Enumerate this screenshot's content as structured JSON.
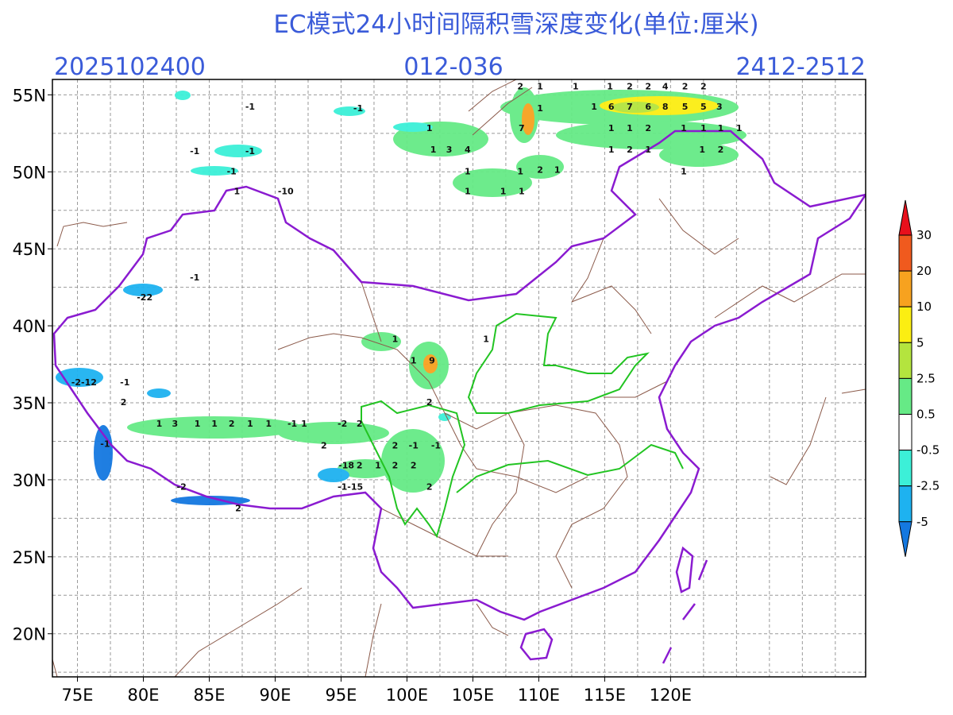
{
  "map": {
    "title": "EC模式24小时间隔积雪深度变化(单位:厘米)",
    "init_time": "2025102400",
    "forecast_hours": "012-036",
    "valid_period": "2412-2512",
    "lon_range": [
      73.1,
      134.8
    ],
    "lat_range": [
      17.2,
      56.0
    ],
    "grid_step": 2.5,
    "lat_ticks": [
      {
        "value": 55,
        "label": "55N"
      },
      {
        "value": 50,
        "label": "50N"
      },
      {
        "value": 45,
        "label": "45N"
      },
      {
        "value": 40,
        "label": "40N"
      },
      {
        "value": 35,
        "label": "35N"
      },
      {
        "value": 30,
        "label": "30N"
      },
      {
        "value": 25,
        "label": "25N"
      },
      {
        "value": 20,
        "label": "20N"
      }
    ],
    "lon_ticks": [
      {
        "value": 75,
        "label": "75E"
      },
      {
        "value": 80,
        "label": "80E"
      },
      {
        "value": 85,
        "label": "85E"
      },
      {
        "value": 90,
        "label": "90E"
      },
      {
        "value": 95,
        "label": "95E"
      },
      {
        "value": 100,
        "label": "100E"
      },
      {
        "value": 105,
        "label": "105E"
      },
      {
        "value": 110,
        "label": "110E"
      },
      {
        "value": 115,
        "label": "115E"
      },
      {
        "value": 120,
        "label": "120E"
      }
    ],
    "colorbar": {
      "levels": [
        30,
        20,
        10,
        5,
        2.5,
        0.5,
        -0.5,
        -2.5,
        -5
      ],
      "colors": [
        "#e8101c",
        "#f05a1e",
        "#f7a21f",
        "#fbee12",
        "#b4e43e",
        "#66ea86",
        "#ffffff",
        "#3cf0d8",
        "#1eb2f0",
        "#1478e0"
      ]
    },
    "labels": [
      {
        "text": "-1",
        "lon": 88.1,
        "lat": 54.2
      },
      {
        "text": "-1",
        "lon": 96.3,
        "lat": 54.1
      },
      {
        "text": "-1",
        "lon": 83.9,
        "lat": 51.3
      },
      {
        "text": "-1",
        "lon": 88.1,
        "lat": 51.3
      },
      {
        "text": "-1",
        "lon": 86.7,
        "lat": 50.0
      },
      {
        "text": "1",
        "lon": 87.1,
        "lat": 48.7
      },
      {
        "text": "-10",
        "lon": 90.8,
        "lat": 48.7
      },
      {
        "text": "-1",
        "lon": 83.9,
        "lat": 43.1
      },
      {
        "text": "-22",
        "lon": 80.1,
        "lat": 41.8
      },
      {
        "text": "-2-12",
        "lon": 75.5,
        "lat": 36.3
      },
      {
        "text": "-1",
        "lon": 78.6,
        "lat": 36.3
      },
      {
        "text": "2",
        "lon": 78.5,
        "lat": 35.0
      },
      {
        "text": "-1",
        "lon": 77.1,
        "lat": 32.3
      },
      {
        "text": "-2",
        "lon": 82.9,
        "lat": 29.5
      },
      {
        "text": "2",
        "lon": 87.2,
        "lat": 28.1
      },
      {
        "text": "1",
        "lon": 81.2,
        "lat": 33.6
      },
      {
        "text": "3",
        "lon": 82.4,
        "lat": 33.6
      },
      {
        "text": "1",
        "lon": 84.1,
        "lat": 33.6
      },
      {
        "text": "1",
        "lon": 85.4,
        "lat": 33.6
      },
      {
        "text": "2",
        "lon": 86.7,
        "lat": 33.6
      },
      {
        "text": "1",
        "lon": 88.1,
        "lat": 33.6
      },
      {
        "text": "1",
        "lon": 89.5,
        "lat": 33.6
      },
      {
        "text": "-1",
        "lon": 91.3,
        "lat": 33.6
      },
      {
        "text": "1",
        "lon": 92.2,
        "lat": 33.6
      },
      {
        "text": "2",
        "lon": 108.6,
        "lat": 55.5
      },
      {
        "text": "1",
        "lon": 110.1,
        "lat": 55.5
      },
      {
        "text": "1",
        "lon": 112.8,
        "lat": 55.5
      },
      {
        "text": "1",
        "lon": 115.4,
        "lat": 55.5
      },
      {
        "text": "2",
        "lon": 116.9,
        "lat": 55.5
      },
      {
        "text": "2",
        "lon": 118.3,
        "lat": 55.5
      },
      {
        "text": "4",
        "lon": 119.6,
        "lat": 55.5
      },
      {
        "text": "2",
        "lon": 121.1,
        "lat": 55.5
      },
      {
        "text": "2",
        "lon": 122.5,
        "lat": 55.5
      },
      {
        "text": "1",
        "lon": 114.2,
        "lat": 54.2
      },
      {
        "text": "6",
        "lon": 115.5,
        "lat": 54.2
      },
      {
        "text": "7",
        "lon": 116.9,
        "lat": 54.2
      },
      {
        "text": "6",
        "lon": 118.3,
        "lat": 54.2
      },
      {
        "text": "8",
        "lon": 119.6,
        "lat": 54.2
      },
      {
        "text": "5",
        "lon": 121.1,
        "lat": 54.2
      },
      {
        "text": "5",
        "lon": 122.5,
        "lat": 54.2
      },
      {
        "text": "3",
        "lon": 123.7,
        "lat": 54.2
      },
      {
        "text": "1",
        "lon": 110.1,
        "lat": 54.1
      },
      {
        "text": "7",
        "lon": 108.7,
        "lat": 52.8
      },
      {
        "text": "1",
        "lon": 101.7,
        "lat": 52.8
      },
      {
        "text": "1",
        "lon": 102.0,
        "lat": 51.4
      },
      {
        "text": "3",
        "lon": 103.2,
        "lat": 51.4
      },
      {
        "text": "4",
        "lon": 104.6,
        "lat": 51.4
      },
      {
        "text": "1",
        "lon": 104.6,
        "lat": 50.0
      },
      {
        "text": "1",
        "lon": 108.6,
        "lat": 50.0
      },
      {
        "text": "2",
        "lon": 110.1,
        "lat": 50.1
      },
      {
        "text": "1",
        "lon": 111.4,
        "lat": 50.1
      },
      {
        "text": "1",
        "lon": 104.6,
        "lat": 48.7
      },
      {
        "text": "1",
        "lon": 107.3,
        "lat": 48.7
      },
      {
        "text": "1",
        "lon": 108.7,
        "lat": 48.7
      },
      {
        "text": "1",
        "lon": 115.5,
        "lat": 52.8
      },
      {
        "text": "1",
        "lon": 116.9,
        "lat": 52.8
      },
      {
        "text": "2",
        "lon": 118.3,
        "lat": 52.8
      },
      {
        "text": "1",
        "lon": 121.0,
        "lat": 52.8
      },
      {
        "text": "1",
        "lon": 122.5,
        "lat": 52.8
      },
      {
        "text": "1",
        "lon": 123.8,
        "lat": 52.8
      },
      {
        "text": "1",
        "lon": 125.2,
        "lat": 52.8
      },
      {
        "text": "1",
        "lon": 115.5,
        "lat": 51.4
      },
      {
        "text": "2",
        "lon": 116.9,
        "lat": 51.4
      },
      {
        "text": "1",
        "lon": 118.3,
        "lat": 51.4
      },
      {
        "text": "1",
        "lon": 122.4,
        "lat": 51.4
      },
      {
        "text": "2",
        "lon": 123.8,
        "lat": 51.4
      },
      {
        "text": "1",
        "lon": 121.0,
        "lat": 50.0
      },
      {
        "text": "1",
        "lon": 99.1,
        "lat": 39.1
      },
      {
        "text": "1",
        "lon": 106.0,
        "lat": 39.1
      },
      {
        "text": "1",
        "lon": 100.5,
        "lat": 37.7
      },
      {
        "text": "9",
        "lon": 101.9,
        "lat": 37.7
      },
      {
        "text": "2",
        "lon": 101.7,
        "lat": 35.0
      },
      {
        "text": "-2",
        "lon": 95.1,
        "lat": 33.6
      },
      {
        "text": "2",
        "lon": 96.4,
        "lat": 33.6
      },
      {
        "text": "2",
        "lon": 93.7,
        "lat": 32.2
      },
      {
        "text": "2",
        "lon": 99.1,
        "lat": 32.2
      },
      {
        "text": "-1",
        "lon": 100.5,
        "lat": 32.2
      },
      {
        "text": "-1",
        "lon": 102.2,
        "lat": 32.2
      },
      {
        "text": "-18",
        "lon": 95.4,
        "lat": 30.9
      },
      {
        "text": "2",
        "lon": 96.4,
        "lat": 30.9
      },
      {
        "text": "1",
        "lon": 97.8,
        "lat": 30.9
      },
      {
        "text": "2",
        "lon": 99.1,
        "lat": 30.9
      },
      {
        "text": "2",
        "lon": 100.5,
        "lat": 30.9
      },
      {
        "text": "-1-15",
        "lon": 95.7,
        "lat": 29.5
      },
      {
        "text": "2",
        "lon": 101.7,
        "lat": 29.5
      }
    ]
  }
}
